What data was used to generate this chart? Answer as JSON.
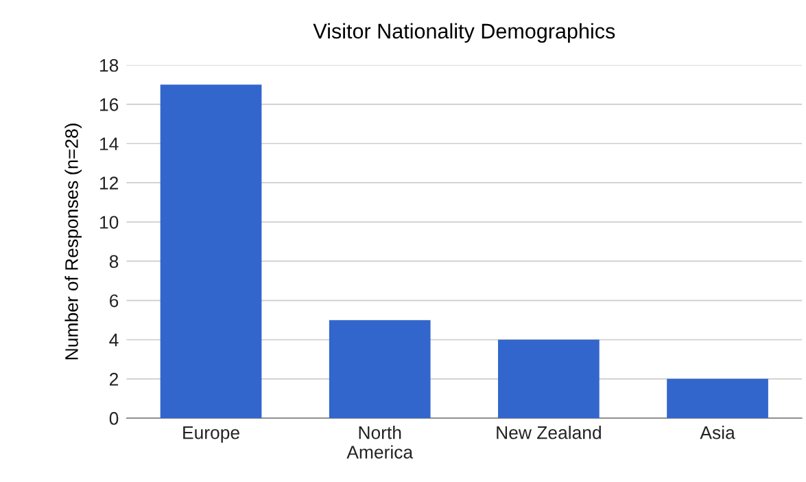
{
  "chart_data": {
    "type": "bar",
    "title": "Visitor Nationality Demographics",
    "ylabel": "Number of Responses (n=28)",
    "categories": [
      "Europe",
      "North\nAmerica",
      "New Zealand",
      "Asia"
    ],
    "values": [
      17,
      5,
      4,
      2
    ],
    "color": "#3366cc",
    "ylim": [
      0,
      18
    ],
    "yticks": [
      0,
      2,
      4,
      6,
      8,
      10,
      12,
      14,
      16,
      18
    ],
    "grid": "y",
    "legend": false
  }
}
